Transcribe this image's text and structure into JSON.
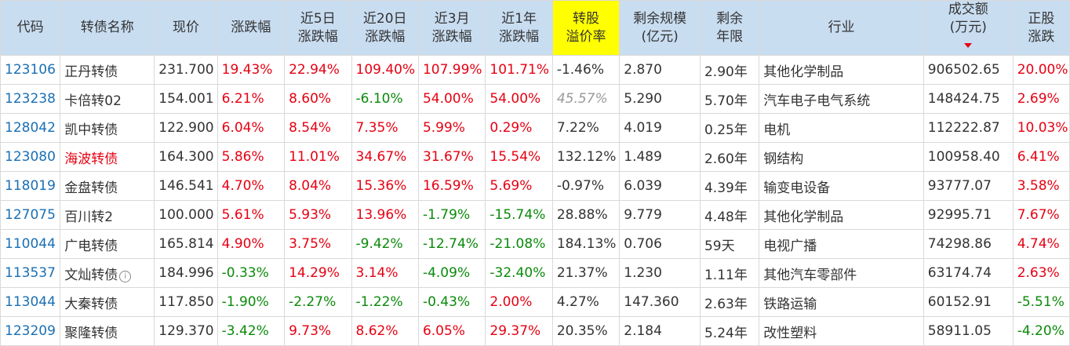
{
  "headers": {
    "code": "代码",
    "name": "转债名称",
    "price": "现价",
    "change": "涨跌幅",
    "chg5d_1": "近5日",
    "chg5d_2": "涨跌幅",
    "chg20d_1": "近20日",
    "chg20d_2": "涨跌幅",
    "chg3m_1": "近3月",
    "chg3m_2": "涨跌幅",
    "chg1y_1": "近1年",
    "chg1y_2": "涨跌幅",
    "premium_1": "转股",
    "premium_2": "溢价率",
    "remain_1": "剩余规模",
    "remain_2": "(亿元)",
    "years_1": "剩余",
    "years_2": "年限",
    "industry": "行业",
    "volume_1": "成交额",
    "volume_2": "(万元)",
    "stock_1": "正股",
    "stock_2": "涨跌"
  },
  "colors": {
    "header_bg": "#c9ddf1",
    "premium_header_bg": "#ffff00",
    "up": "#e60012",
    "down": "#0a8a0a",
    "link": "#1a6fb4"
  },
  "sort_icon": "sort-desc-icon",
  "rows": [
    {
      "code": "123106",
      "name": "正丹转债",
      "name_red": false,
      "price": "231.700",
      "change": "19.43%",
      "chg5d": "22.94%",
      "chg20d": "109.40%",
      "chg3m": "107.99%",
      "chg1y": "101.71%",
      "premium": "-1.46%",
      "premium_muted": false,
      "remain": "2.870",
      "years": "2.90年",
      "industry": "其他化学制品",
      "volume": "906502.65",
      "stock": "20.00%"
    },
    {
      "code": "123238",
      "name": "卡倍转02",
      "name_red": false,
      "price": "154.001",
      "change": "6.21%",
      "chg5d": "8.60%",
      "chg20d": "-6.10%",
      "chg3m": "54.00%",
      "chg1y": "54.00%",
      "premium": "45.57%",
      "premium_muted": true,
      "remain": "5.290",
      "years": "5.70年",
      "industry": "汽车电子电气系统",
      "volume": "148424.75",
      "stock": "2.69%"
    },
    {
      "code": "128042",
      "name": "凯中转债",
      "name_red": false,
      "price": "122.900",
      "change": "6.04%",
      "chg5d": "8.54%",
      "chg20d": "7.35%",
      "chg3m": "5.99%",
      "chg1y": "0.29%",
      "premium": "7.22%",
      "premium_muted": false,
      "remain": "4.019",
      "years": "0.25年",
      "industry": "电机",
      "volume": "112222.87",
      "stock": "10.03%"
    },
    {
      "code": "123080",
      "name": "海波转债",
      "name_red": true,
      "price": "164.300",
      "change": "5.86%",
      "chg5d": "11.01%",
      "chg20d": "34.67%",
      "chg3m": "31.67%",
      "chg1y": "15.54%",
      "premium": "132.12%",
      "premium_muted": false,
      "remain": "1.489",
      "years": "2.60年",
      "industry": "钢结构",
      "volume": "100958.40",
      "stock": "6.41%"
    },
    {
      "code": "118019",
      "name": "金盘转债",
      "name_red": false,
      "price": "146.541",
      "change": "4.70%",
      "chg5d": "8.04%",
      "chg20d": "15.36%",
      "chg3m": "16.59%",
      "chg1y": "5.69%",
      "premium": "-0.97%",
      "premium_muted": false,
      "remain": "6.039",
      "years": "4.39年",
      "industry": "输变电设备",
      "volume": "93777.07",
      "stock": "3.58%"
    },
    {
      "code": "127075",
      "name": "百川转2",
      "name_red": false,
      "price": "100.000",
      "change": "5.61%",
      "chg5d": "5.93%",
      "chg20d": "13.96%",
      "chg3m": "-1.79%",
      "chg1y": "-15.74%",
      "premium": "28.88%",
      "premium_muted": false,
      "remain": "9.779",
      "years": "4.48年",
      "industry": "其他化学制品",
      "volume": "92995.71",
      "stock": "7.67%"
    },
    {
      "code": "110044",
      "name": "广电转债",
      "name_red": false,
      "price": "165.814",
      "change": "4.90%",
      "chg5d": "3.75%",
      "chg20d": "-9.42%",
      "chg3m": "-12.74%",
      "chg1y": "-21.08%",
      "premium": "184.13%",
      "premium_muted": false,
      "remain": "0.706",
      "years": "59天",
      "industry": "电视广播",
      "volume": "74298.86",
      "stock": "4.74%"
    },
    {
      "code": "113537",
      "name": "文灿转债",
      "name_red": false,
      "name_info": true,
      "price": "184.996",
      "change": "-0.33%",
      "chg5d": "14.29%",
      "chg20d": "3.14%",
      "chg3m": "-4.09%",
      "chg1y": "-32.40%",
      "premium": "21.37%",
      "premium_muted": false,
      "remain": "1.230",
      "years": "1.11年",
      "industry": "其他汽车零部件",
      "volume": "63174.74",
      "stock": "2.63%"
    },
    {
      "code": "113044",
      "name": "大秦转债",
      "name_red": false,
      "price": "117.850",
      "change": "-1.90%",
      "chg5d": "-2.27%",
      "chg20d": "-1.22%",
      "chg3m": "-0.43%",
      "chg1y": "2.00%",
      "premium": "4.27%",
      "premium_muted": false,
      "remain": "147.360",
      "years": "2.63年",
      "industry": "铁路运输",
      "volume": "60152.91",
      "stock": "-5.51%"
    },
    {
      "code": "123209",
      "name": "聚隆转债",
      "name_red": false,
      "price": "129.370",
      "change": "-3.42%",
      "chg5d": "9.73%",
      "chg20d": "8.62%",
      "chg3m": "6.05%",
      "chg1y": "29.37%",
      "premium": "20.35%",
      "premium_muted": false,
      "remain": "2.184",
      "years": "5.24年",
      "industry": "改性塑料",
      "volume": "58911.05",
      "stock": "-4.20%"
    }
  ]
}
